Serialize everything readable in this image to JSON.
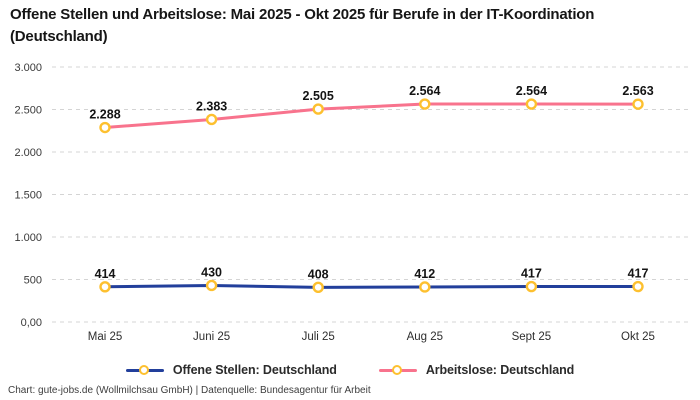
{
  "chart_data": {
    "type": "line",
    "title": "Offene Stellen und Arbeitslose: Mai 2025 - Okt 2025 für Berufe in der IT-Koordination (Deutschland)",
    "categories": [
      "Mai 25",
      "Juni 25",
      "Juli 25",
      "Aug 25",
      "Sept 25",
      "Okt 25"
    ],
    "series": [
      {
        "name": "Offene Stellen: Deutschland",
        "color": "#223f9b",
        "values": [
          414,
          430,
          408,
          412,
          417,
          417
        ],
        "value_labels": [
          "414",
          "430",
          "408",
          "412",
          "417",
          "417"
        ]
      },
      {
        "name": "Arbeitslose: Deutschland",
        "color": "#f8738d",
        "values": [
          2288,
          2383,
          2505,
          2564,
          2564,
          2563
        ],
        "value_labels": [
          "2.288",
          "2.383",
          "2.505",
          "2.564",
          "2.564",
          "2.563"
        ]
      }
    ],
    "ylim": [
      0,
      3000
    ],
    "yticks": [
      0,
      500,
      1000,
      1500,
      2000,
      2500,
      3000
    ],
    "ytick_labels": [
      "0,00",
      "500",
      "1.000",
      "1.500",
      "2.000",
      "2.500",
      "3.000"
    ],
    "grid": "horizontal-dashed",
    "legend_position": "bottom",
    "marker": {
      "fill": "#ffffff",
      "ring": "#fdc02f"
    },
    "number_format": "de-DE"
  },
  "source_credit": "Chart: gute-jobs.de (Wollmilchsau GmbH) | Datenquelle: Bundesagentur für Arbeit",
  "colors": {
    "background": "#ffffff",
    "gridline": "#d4d4d4",
    "axis_text": "#3a3a3a",
    "value_label_text": "#141414",
    "title_text": "#161616",
    "marker_ring": "#fdc02f",
    "marker_fill": "#ffffff",
    "open_positions_line": "#223f9b",
    "unemployed_line": "#f8738d"
  }
}
